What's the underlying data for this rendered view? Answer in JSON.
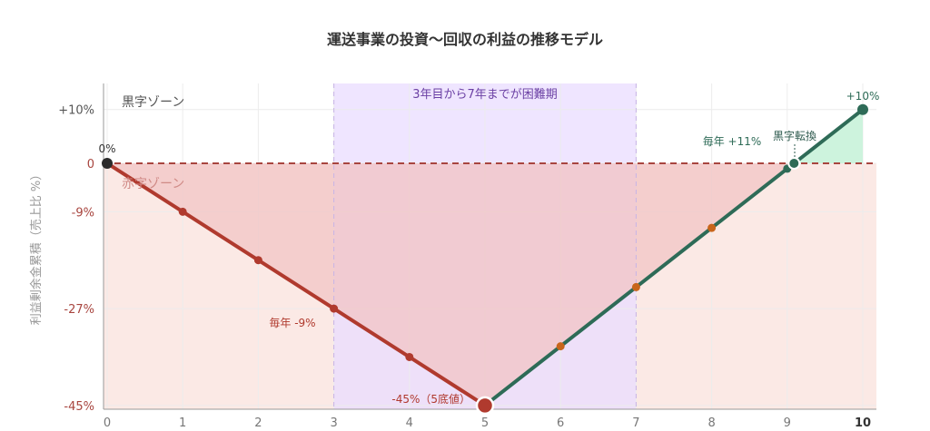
{
  "chart_data": {
    "type": "line",
    "title": "運送事業の投資〜回収の利益の推移モデル",
    "ylabel": "利益剰余金累積（売上比 %）",
    "xlabel": "",
    "xlim": [
      0,
      10
    ],
    "ylim": [
      -45,
      13
    ],
    "x_ticks": [
      "0",
      "1",
      "2",
      "3",
      "4",
      "5",
      "6",
      "7",
      "8",
      "9",
      "10"
    ],
    "y_ticks": [
      {
        "value": 10,
        "label": "+10%"
      },
      {
        "value": 0,
        "label": "0"
      },
      {
        "value": -9,
        "label": "-9%"
      },
      {
        "value": -27,
        "label": "-27%"
      },
      {
        "value": -45,
        "label": "-45%"
      }
    ],
    "grid": true,
    "series": [
      {
        "x": [
          0,
          1,
          2,
          3,
          4,
          5
        ],
        "values": [
          0,
          -9,
          -18,
          -27,
          -36,
          -45
        ],
        "color": "#b03a2e"
      },
      {
        "x": [
          5,
          6,
          7,
          8,
          9,
          10
        ],
        "values": [
          -45,
          -34,
          -23,
          -12,
          -1,
          10
        ],
        "color": "#2e6b57"
      }
    ],
    "breakeven_x": 9.09,
    "highlight_band": {
      "from": 3,
      "to": 7,
      "label": "3年目から7年までが困難期",
      "color": "#e9dcff"
    },
    "zones": {
      "profit": "黒字ゾーン",
      "loss": "赤字ゾーン"
    },
    "annotations": {
      "start": "0%",
      "bottom": "-45%（5底値）",
      "end": "+10%",
      "decline_rate": "毎年 -9%",
      "growth_rate": "毎年 +11%",
      "breakeven": "黒字転換"
    },
    "colors": {
      "loss_fill": "#fbe9e5",
      "loss_area": "#f2c4c4",
      "profit_area": "#cdf3dd",
      "zero_line": "#a8453f",
      "recovery_marker": "#c8651b"
    }
  }
}
